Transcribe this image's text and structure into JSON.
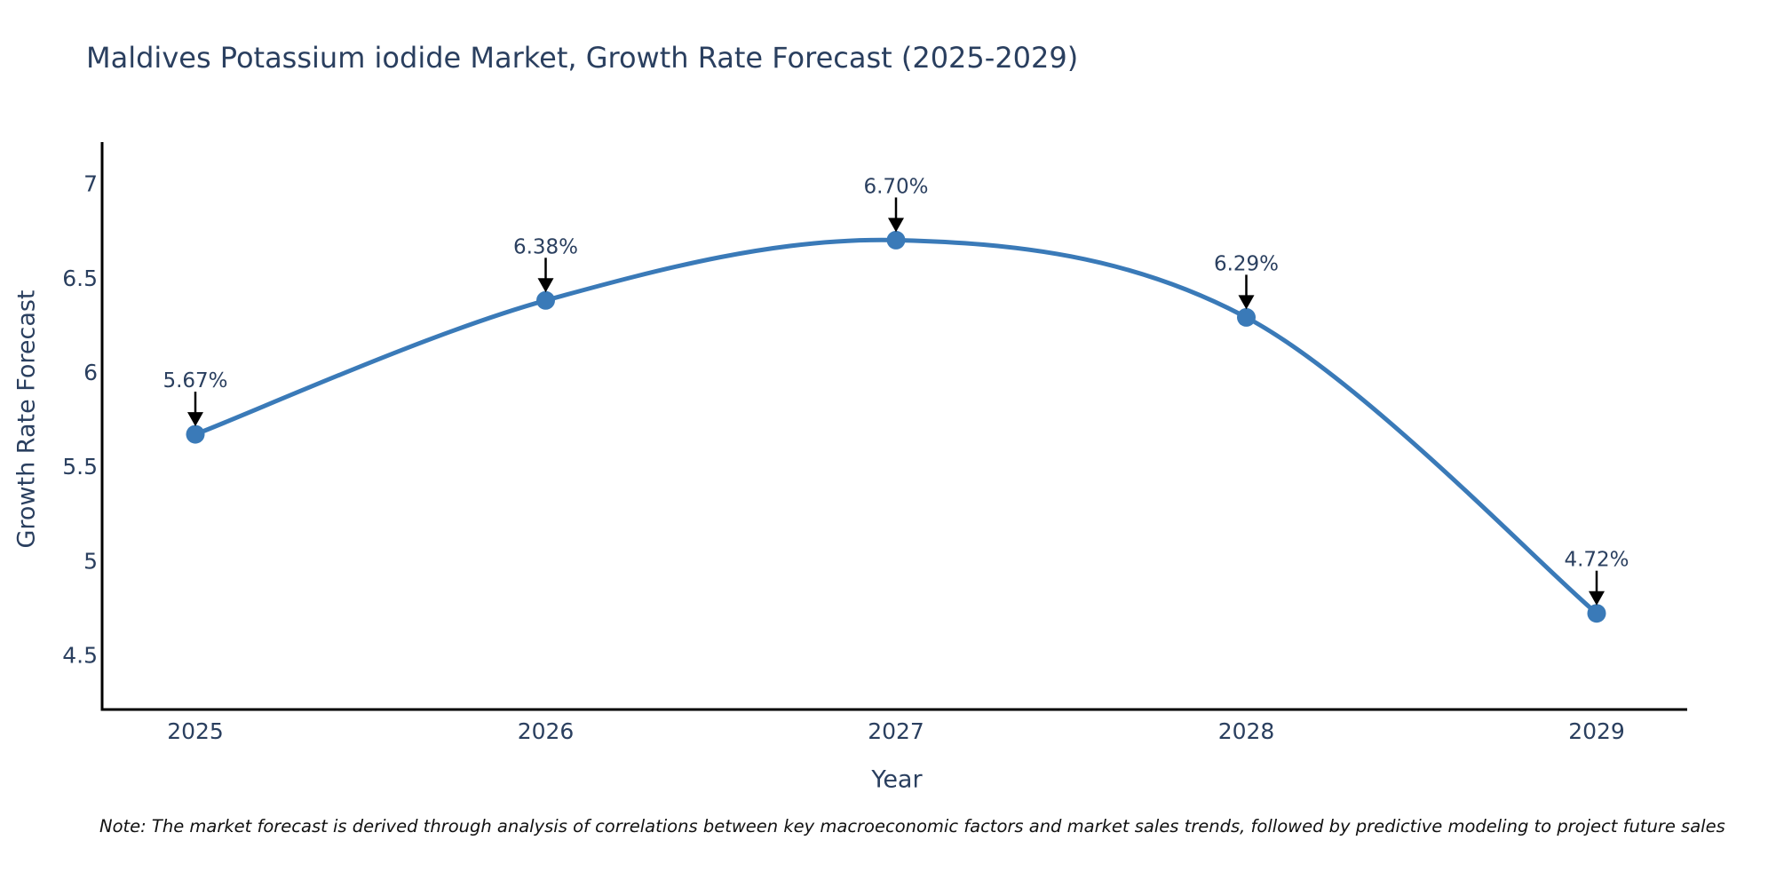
{
  "chart_data": {
    "type": "line",
    "title": "Maldives Potassium iodide Market, Growth Rate Forecast (2025-2029)",
    "xlabel": "Year",
    "ylabel": "Growth Rate Forecast",
    "categories": [
      "2025",
      "2026",
      "2027",
      "2028",
      "2029"
    ],
    "values": [
      5.67,
      6.38,
      6.7,
      6.29,
      4.72
    ],
    "point_labels": [
      "5.67%",
      "6.38%",
      "6.70%",
      "6.29%",
      "4.72%"
    ],
    "yticks": [
      7,
      6.5,
      6,
      5.5,
      5,
      4.5
    ],
    "ylim": [
      4.21,
      7.22
    ],
    "grid": false,
    "legend": "none",
    "colors": {
      "line": "#3a7ab8",
      "marker": "#3a7ab8",
      "axis": "#000000",
      "text": "#2a3f5f",
      "annotation_arrow": "#000000",
      "note_text": "#111111"
    },
    "note": "Note: The market forecast is derived through analysis of correlations between key macroeconomic factors and market sales trends, followed by predictive modeling to project future sales"
  }
}
